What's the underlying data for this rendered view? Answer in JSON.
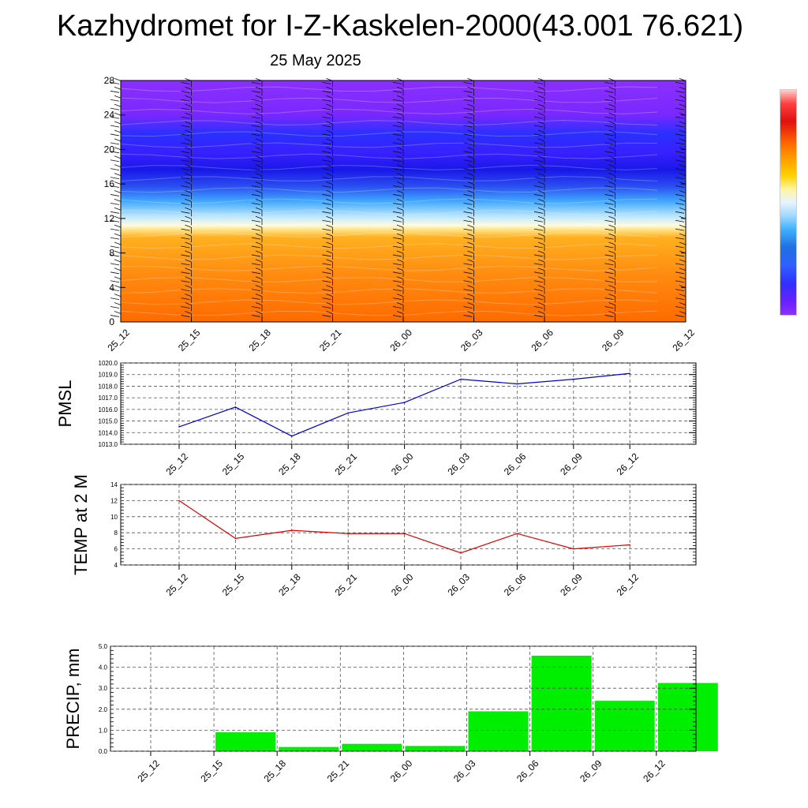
{
  "header": {
    "title": "Kazhydromet for I-Z-Kaskelen-2000(43.001 76.621)",
    "subtitle": "25 May 2025"
  },
  "chart_data": [
    {
      "type": "heatmap",
      "title": "",
      "xlabel": "",
      "ylabel": "",
      "x_ticks": [
        "25_12",
        "25_15",
        "25_18",
        "25_21",
        "26_00",
        "26_03",
        "26_06",
        "26_09",
        "26_12"
      ],
      "y_ticks": [
        "0",
        "4",
        "8",
        "12",
        "16",
        "20",
        "24",
        "28"
      ],
      "ylim": [
        0,
        28
      ],
      "color_bands": [
        {
          "from": 0,
          "to": 11,
          "color": "#ff7a10"
        },
        {
          "from": 11,
          "to": 13,
          "color": "#a0d8ff"
        },
        {
          "from": 13,
          "to": 18,
          "color": "#2a30f0"
        },
        {
          "from": 18,
          "to": 28,
          "color": "#8a30ff"
        }
      ],
      "overlay": "wind barbs"
    },
    {
      "type": "line",
      "ylabel": "PMSL",
      "x": [
        "25_12",
        "25_15",
        "25_18",
        "25_21",
        "26_00",
        "26_03",
        "26_06",
        "26_09",
        "26_12"
      ],
      "y_ticks": [
        "1013.0",
        "1014.0",
        "1015.0",
        "1016.0",
        "1017.0",
        "1018.0",
        "1019.0",
        "1020.0"
      ],
      "ylim": [
        1013,
        1020
      ],
      "series": [
        {
          "values": [
            1014.5,
            1016.2,
            1013.7,
            1015.7,
            1016.6,
            1018.6,
            1018.2,
            1018.6,
            1019.1
          ],
          "color": "#0000cc"
        }
      ]
    },
    {
      "type": "line",
      "ylabel": "TEMP at 2 M",
      "x": [
        "25_12",
        "25_15",
        "25_18",
        "25_21",
        "26_00",
        "26_03",
        "26_06",
        "26_09",
        "26_12"
      ],
      "y_ticks": [
        "4",
        "6",
        "8",
        "10",
        "12",
        "14"
      ],
      "ylim": [
        4,
        14
      ],
      "series": [
        {
          "values": [
            12.0,
            7.3,
            8.3,
            7.9,
            7.9,
            5.5,
            7.9,
            6.0,
            6.5
          ],
          "color": "#dd0000"
        }
      ]
    },
    {
      "type": "bar",
      "ylabel": "PRECIP, mm",
      "categories": [
        "25_12",
        "25_15",
        "25_18",
        "25_21",
        "26_00",
        "26_03",
        "26_06",
        "26_09",
        "26_12"
      ],
      "y_ticks": [
        "0.0",
        "1.0",
        "2.0",
        "3.0",
        "4.0",
        "5.0"
      ],
      "ylim": [
        0,
        5
      ],
      "values": [
        0.0,
        0.9,
        0.2,
        0.35,
        0.25,
        1.9,
        4.55,
        2.4,
        3.25
      ],
      "color": "#00ee00"
    }
  ]
}
